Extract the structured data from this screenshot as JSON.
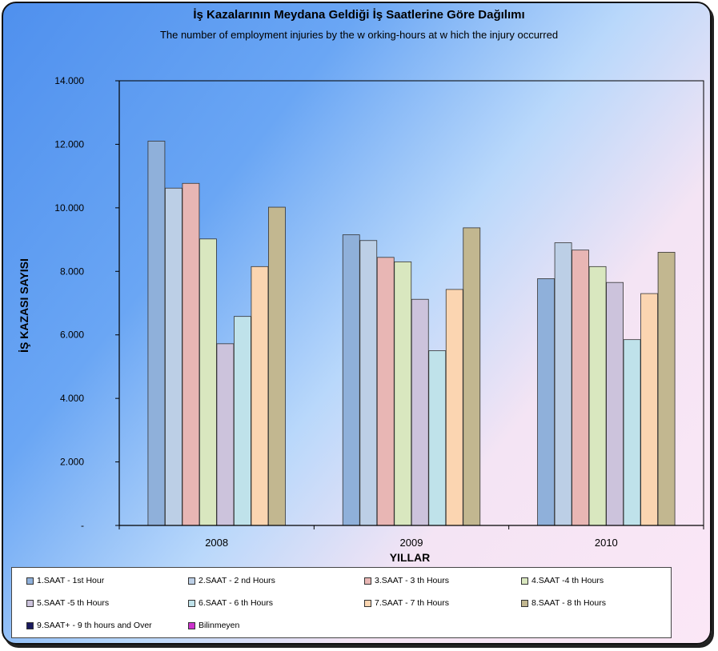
{
  "chart_data": {
    "type": "bar",
    "title": "İş Kazalarının Meydana Geldiği İş Saatlerine Göre Dağılımı",
    "subtitle": "The number of employment injuries by the w orking-hours at w hich the injury occurred",
    "xlabel": "YILLAR",
    "ylabel": "İŞ KAZASI SAYISI",
    "ylim": [
      0,
      14000
    ],
    "yticks": [
      0,
      2000,
      4000,
      6000,
      8000,
      10000,
      12000,
      14000
    ],
    "ytick_labels": [
      "-",
      "2.000",
      "4.000",
      "6.000",
      "8.000",
      "10.000",
      "12.000",
      "14.000"
    ],
    "categories": [
      "2008",
      "2009",
      "2010"
    ],
    "grid": false,
    "legend_position": "bottom",
    "series": [
      {
        "name": "1.SAAT - 1st Hour",
        "color": "#8fb0da",
        "values": [
          12100,
          9150,
          7770
        ]
      },
      {
        "name": "2.SAAT - 2 nd Hours",
        "color": "#bccfe6",
        "values": [
          10620,
          8970,
          8900
        ]
      },
      {
        "name": "3.SAAT - 3 th Hours",
        "color": "#e8b6b4",
        "values": [
          10770,
          8440,
          8670
        ]
      },
      {
        "name": "4.SAAT -4 th Hours",
        "color": "#d9e7bf",
        "values": [
          9020,
          8300,
          8150
        ]
      },
      {
        "name": "5.SAAT -5 th Hours",
        "color": "#ccc3dc",
        "values": [
          5720,
          7120,
          7650
        ]
      },
      {
        "name": "6.SAAT - 6 th Hours",
        "color": "#bfe2ea",
        "values": [
          6580,
          5500,
          5850
        ]
      },
      {
        "name": "7.SAAT - 7 th Hours",
        "color": "#fbd5b1",
        "values": [
          8150,
          7430,
          7300
        ]
      },
      {
        "name": "8.SAAT - 8 th Hours",
        "color": "#c2b790",
        "values": [
          10020,
          9370,
          8600
        ]
      },
      {
        "name": "9.SAAT+ - 9 th hours and Over",
        "color": "#1a1a5e",
        "values": [
          null,
          null,
          null
        ]
      },
      {
        "name": "Bilinmeyen",
        "color": "#cc33cc",
        "values": [
          null,
          null,
          null
        ]
      }
    ]
  }
}
